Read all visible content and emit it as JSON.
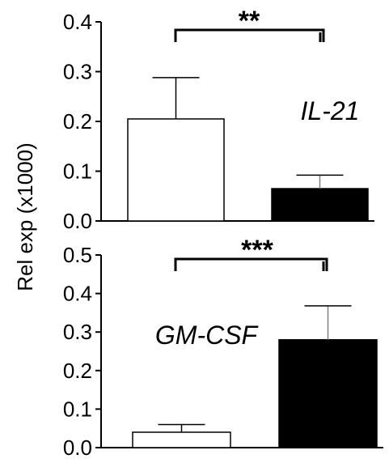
{
  "ylabel": "Rel exp (x1000)",
  "chart_data": [
    {
      "type": "bar",
      "gene": "IL-21",
      "ylim": [
        0,
        0.4
      ],
      "ticks": [
        "0.0",
        "0.1",
        "0.2",
        "0.3",
        "0.4"
      ],
      "tick_values": [
        0,
        0.1,
        0.2,
        0.3,
        0.4
      ],
      "values": [
        0.205,
        0.065
      ],
      "errors": [
        0.083,
        0.027
      ],
      "fills": [
        "#ffffff",
        "#000000"
      ],
      "significance": "**"
    },
    {
      "type": "bar",
      "gene": "GM-CSF",
      "ylim": [
        0,
        0.5
      ],
      "ticks": [
        "0.0",
        "0.1",
        "0.2",
        "0.3",
        "0.4",
        "0.5"
      ],
      "tick_values": [
        0,
        0.1,
        0.2,
        0.3,
        0.4,
        0.5
      ],
      "values": [
        0.04,
        0.28
      ],
      "errors": [
        0.02,
        0.088
      ],
      "fills": [
        "#ffffff",
        "#000000"
      ],
      "significance": "***"
    }
  ]
}
